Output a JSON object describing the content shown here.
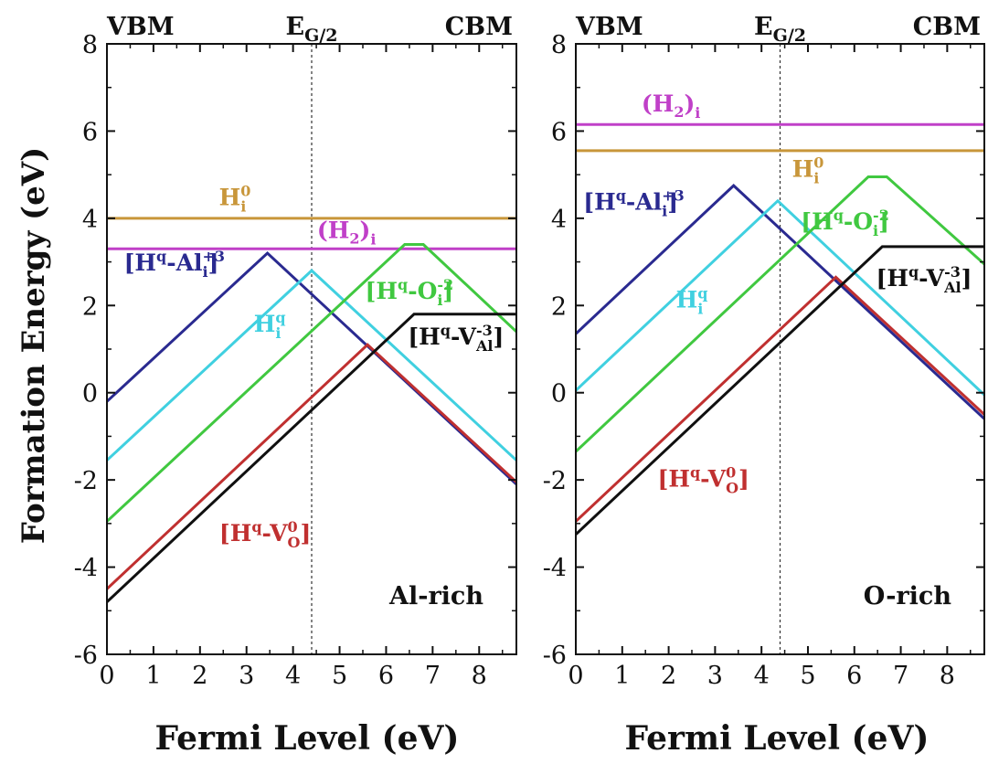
{
  "figure": {
    "ylabel": "Formation Energy (eV)",
    "xlabel": "Fermi Level (eV)"
  },
  "chart_data": [
    {
      "type": "line",
      "panel_label": "Al-rich",
      "header": {
        "left": "VBM",
        "mid_base": "E",
        "mid_sub": "G/2",
        "right": "CBM"
      },
      "xlim": [
        0,
        8.8
      ],
      "ylim": [
        -6,
        8
      ],
      "xticks": [
        0,
        1,
        2,
        3,
        4,
        5,
        6,
        7,
        8
      ],
      "yticks": [
        -6,
        -4,
        -2,
        0,
        2,
        4,
        6,
        8
      ],
      "grid": false,
      "midgap_x": 4.4,
      "series": [
        {
          "key": "H_i_0",
          "color": "#c8963a",
          "x": [
            0,
            8.8
          ],
          "y": [
            4.0,
            4.0
          ]
        },
        {
          "key": "H2_i",
          "color": "#c040c8",
          "x": [
            0,
            8.8
          ],
          "y": [
            3.3,
            3.3
          ]
        },
        {
          "key": "H_Al_i",
          "color": "#2a2a90",
          "x": [
            0,
            3.45,
            8.8
          ],
          "y": [
            -0.2,
            3.2,
            -2.1
          ]
        },
        {
          "key": "H_i_q",
          "color": "#40d0e0",
          "x": [
            0,
            4.4,
            8.8
          ],
          "y": [
            -1.55,
            2.8,
            -1.55
          ]
        },
        {
          "key": "H_O_i",
          "color": "#40c840",
          "x": [
            0,
            6.4,
            6.8,
            8.8
          ],
          "y": [
            -2.95,
            3.4,
            3.4,
            1.4
          ]
        },
        {
          "key": "H_V_O",
          "color": "#c03030",
          "x": [
            0,
            5.6,
            8.8
          ],
          "y": [
            -4.5,
            1.1,
            -2.05
          ]
        },
        {
          "key": "H_V_Al",
          "color": "#101010",
          "x": [
            0,
            6.6,
            8.8
          ],
          "y": [
            -4.8,
            1.8,
            1.8
          ]
        }
      ],
      "labels": [
        {
          "key": "H_i_0",
          "text": "H",
          "sup": "0",
          "sub": "i",
          "color": "#c8963a",
          "x": 2.75,
          "y": 4.3
        },
        {
          "key": "H2_i",
          "text": "(H",
          "sub2": "2",
          "tail": ")",
          "sub": "i",
          "color": "#c040c8",
          "x": 5.15,
          "y": 3.55
        },
        {
          "key": "H_Al_i",
          "text": "[H",
          "supq": "q",
          "mid": "-Al",
          "sup": "+3",
          "sub": "i",
          "close": "]",
          "color": "#2a2a90",
          "x": 1.45,
          "y": 2.8
        },
        {
          "key": "H_i_q",
          "text": "H",
          "sup": "q",
          "sub": "i",
          "color": "#40d0e0",
          "x": 3.5,
          "y": 1.4
        },
        {
          "key": "H_O_i",
          "text": "[H",
          "supq": "q",
          "mid": "-O",
          "sup": "-2",
          "sub": "i",
          "close": "]",
          "color": "#40c840",
          "x": 6.5,
          "y": 2.15
        },
        {
          "key": "H_V_Al",
          "text": "[H",
          "supq": "q",
          "mid": "-V",
          "sup": "-3",
          "sub": "Al",
          "close": "]",
          "color": "#101010",
          "x": 7.5,
          "y": 1.1
        },
        {
          "key": "H_V_O",
          "text": "[H",
          "supq": "q",
          "mid": "-V",
          "sup": "0",
          "sub": "O",
          "close": "]",
          "color": "#c03030",
          "x": 3.4,
          "y": -3.4
        }
      ]
    },
    {
      "type": "line",
      "panel_label": "O-rich",
      "header": {
        "left": "VBM",
        "mid_base": "E",
        "mid_sub": "G/2",
        "right": "CBM"
      },
      "xlim": [
        0,
        8.8
      ],
      "ylim": [
        -6,
        8
      ],
      "xticks": [
        0,
        1,
        2,
        3,
        4,
        5,
        6,
        7,
        8
      ],
      "yticks": [
        -6,
        -4,
        -2,
        0,
        2,
        4,
        6,
        8
      ],
      "grid": false,
      "midgap_x": 4.4,
      "series": [
        {
          "key": "H2_i",
          "color": "#c040c8",
          "x": [
            0,
            8.8
          ],
          "y": [
            6.15,
            6.15
          ]
        },
        {
          "key": "H_i_0",
          "color": "#c8963a",
          "x": [
            0,
            8.8
          ],
          "y": [
            5.55,
            5.55
          ]
        },
        {
          "key": "H_Al_i",
          "color": "#2a2a90",
          "x": [
            0,
            3.4,
            8.8
          ],
          "y": [
            1.35,
            4.75,
            -0.6
          ]
        },
        {
          "key": "H_i_q",
          "color": "#40d0e0",
          "x": [
            0,
            4.35,
            8.8
          ],
          "y": [
            0.05,
            4.4,
            -0.05
          ]
        },
        {
          "key": "H_O_i",
          "color": "#40c840",
          "x": [
            0,
            6.3,
            6.7,
            8.8
          ],
          "y": [
            -1.35,
            4.95,
            4.95,
            2.95
          ]
        },
        {
          "key": "H_V_O",
          "color": "#c03030",
          "x": [
            0,
            5.6,
            8.8
          ],
          "y": [
            -2.95,
            2.65,
            -0.5
          ]
        },
        {
          "key": "H_V_Al",
          "color": "#101010",
          "x": [
            0,
            6.6,
            8.2,
            8.8
          ],
          "y": [
            -3.25,
            3.35,
            3.35,
            3.35
          ]
        }
      ],
      "labels": [
        {
          "key": "H2_i",
          "text": "(H",
          "sub2": "2",
          "tail": ")",
          "sub": "i",
          "color": "#c040c8",
          "x": 2.05,
          "y": 6.45
        },
        {
          "key": "H_i_0",
          "text": "H",
          "sup": "0",
          "sub": "i",
          "color": "#c8963a",
          "x": 5.0,
          "y": 4.95
        },
        {
          "key": "H_Al_i",
          "text": "[H",
          "supq": "q",
          "mid": "-Al",
          "sup": "+3",
          "sub": "i",
          "close": "]",
          "color": "#2a2a90",
          "x": 1.25,
          "y": 4.2
        },
        {
          "key": "H_i_q",
          "text": "H",
          "sup": "q",
          "sub": "i",
          "color": "#40d0e0",
          "x": 2.5,
          "y": 1.95
        },
        {
          "key": "H_O_i",
          "text": "[H",
          "supq": "q",
          "mid": "-O",
          "sup": "-2",
          "sub": "i",
          "close": "]",
          "color": "#40c840",
          "x": 5.8,
          "y": 3.75
        },
        {
          "key": "H_V_Al",
          "text": "[H",
          "supq": "q",
          "mid": "-V",
          "sup": "-3",
          "sub": "Al",
          "close": "]",
          "color": "#101010",
          "x": 7.5,
          "y": 2.45
        },
        {
          "key": "H_V_O",
          "text": "[H",
          "supq": "q",
          "mid": "-V",
          "sup": "0",
          "sub": "O",
          "close": "]",
          "color": "#c03030",
          "x": 2.75,
          "y": -2.15
        }
      ]
    }
  ]
}
